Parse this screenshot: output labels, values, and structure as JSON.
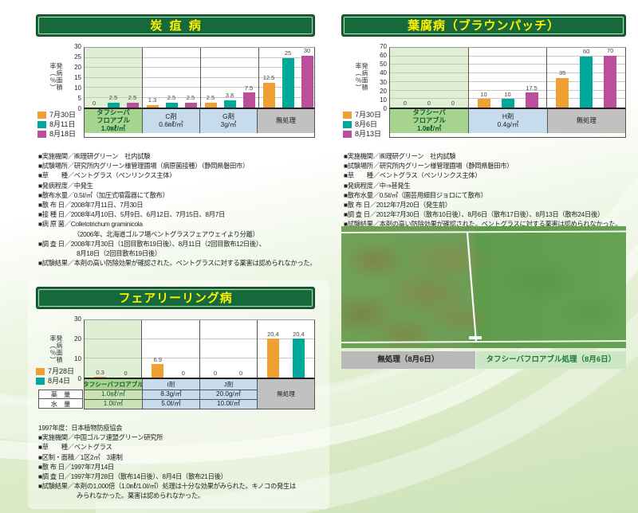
{
  "colors": {
    "series_orange": "#F0A033",
    "series_teal": "#00A79B",
    "series_magenta": "#BC4F9C",
    "header_green": "#15693B",
    "title_yellow": "#FFF100",
    "product_label_green": "#A6D48E",
    "reference_label_blue": "#C6DBEC",
    "untreated_gray": "#C1C1C1",
    "caption_right_green": "#CCE7C5"
  },
  "sections": {
    "anthracnose": {
      "title": "炭疽病",
      "notes": [
        "■実施機関／㈱理研グリーン　社内試験",
        "■試験場所／研究所内グリーン様管理圃場（病原菌接種）（静岡県磐田市）",
        "■草　　種／ベントグラス（ペンリンクス主体）",
        "■発病程度／中発生",
        "■散布水量／0.5ℓ/㎡（加圧式噴霧器にて散布）",
        "■散 布 日／2008年7月11日、7月30日",
        "■接 種 日／2008年4月10日、5月9日、6月12日、7月15日、8月7日",
        "■病 原 菌／Colletotrichum graminicola",
        "　　　　　　（2006年、北海道ゴルフ場ベントグラスフェアウェイより分離）",
        "■調 査 日／2008年7月30日（1回目散布19日後）、8月11日（2回目散布12日後）、",
        "　　　　　　8月18日（2回目散布19日後）",
        "■試験結果／本剤の高い防除効果が確認された。ベントグラスに対する薬害は認められなかった。"
      ]
    },
    "brownpatch": {
      "title": "葉腐病（ブラウンパッチ）",
      "notes": [
        "■実施機関／㈱理研グリーン　社内試験",
        "■試験場所／研究所内グリーン様管理圃場（静岡県磐田市）",
        "■草　　種／ベントグラス（ペンリンクス主体）",
        "■発病程度／中⇒甚発生",
        "■散布水量／0.5ℓ/㎡（園芸用細目ジョロにて散布）",
        "■散 布 日／2012年7月20日（発生前）",
        "■調 査 日／2012年7月30日（散布10日後）、8月6日（散布17日後）、8月13日（散布24日後）",
        "■試験結果／本剤の高い防除効果が確認された。ベントグラスに対する薬害は認められなかった。"
      ]
    },
    "fairyring": {
      "title": "フェアリーリング病",
      "preface": "1997年度：日本植物防疫協会",
      "notes": [
        "■実施機関／中国ゴルフ連盟グリーン研究所",
        "■草　　種／ベントグラス",
        "■区制・面積／1区2㎡　3連制",
        "■散 布 日／1997年7月14日",
        "■調 査 日／1997年7月28日（散布14日後）、8月4日（散布21日後）",
        "■試験結果／本剤の1,000倍（1.0㎖/1.0ℓ/㎡）処理は十分な効果がみられた。キノコの発生は",
        "　　　　　　みられなかった。薬害は認められなかった。"
      ]
    },
    "photo": {
      "caption_left": "無処理（8月6日）",
      "caption_right": "タフシーバフロアブル処理（8月6日）"
    }
  },
  "chart_data": [
    {
      "id": "anthracnose",
      "type": "bar",
      "title": "炭疽病",
      "ylabel": "発病面積率（％）",
      "ylim": [
        0,
        30
      ],
      "yticks": [
        0,
        5,
        10,
        15,
        20,
        25,
        30
      ],
      "grid": true,
      "legend_position": "below-axis",
      "series": [
        "7月30日",
        "8月11日",
        "8月18日"
      ],
      "series_colors": [
        "#F0A033",
        "#00A79B",
        "#BC4F9C"
      ],
      "groups": [
        {
          "label": [
            "タフシーバ",
            "フロアブル",
            "1.0㎖/㎡"
          ],
          "kind": "product",
          "values": [
            0,
            2.5,
            2.5
          ]
        },
        {
          "label": [
            "C剤",
            "0.6㎖/㎡"
          ],
          "kind": "reference",
          "values": [
            1.3,
            2.5,
            2.5
          ]
        },
        {
          "label": [
            "G剤",
            "3g/㎡"
          ],
          "kind": "reference",
          "values": [
            2.5,
            3.8,
            7.5
          ]
        },
        {
          "label": [
            "無処理"
          ],
          "kind": "untreated",
          "values": [
            12.5,
            25,
            30
          ]
        }
      ]
    },
    {
      "id": "brownpatch",
      "type": "bar",
      "title": "葉腐病（ブラウンパッチ）",
      "ylabel": "発病面積率（％）",
      "ylim": [
        0,
        70
      ],
      "yticks": [
        0,
        10,
        20,
        30,
        40,
        50,
        60,
        70
      ],
      "grid": true,
      "legend_position": "below-axis",
      "series": [
        "7月30日",
        "8月6日",
        "8月13日"
      ],
      "series_colors": [
        "#F0A033",
        "#00A79B",
        "#BC4F9C"
      ],
      "groups": [
        {
          "label": [
            "タフシーバ",
            "フロアブル",
            "1.0㎖/㎡"
          ],
          "kind": "product",
          "values": [
            0,
            0,
            0
          ]
        },
        {
          "label": [
            "H剤",
            "0.4g/㎡"
          ],
          "kind": "reference",
          "values": [
            10,
            10,
            17.5
          ]
        },
        {
          "label": [
            "無処理"
          ],
          "kind": "untreated",
          "values": [
            35,
            60,
            70
          ]
        }
      ]
    },
    {
      "id": "fairyring",
      "type": "bar",
      "title": "フェアリーリング病",
      "ylabel": "発病面積率（％）",
      "ylim": [
        0,
        30
      ],
      "yticks": [
        0,
        10,
        20,
        30
      ],
      "grid": true,
      "legend_position": "beside-plot-bottom",
      "series": [
        "7月28日",
        "8月4日"
      ],
      "series_colors": [
        "#F0A033",
        "#00A79B"
      ],
      "row_headers": [
        "薬　量",
        "水　量"
      ],
      "groups": [
        {
          "label": [
            "タフシーバフロアブル"
          ],
          "kind": "product",
          "dose": "1.0㎖/㎡",
          "water": "1.0ℓ/㎡",
          "values": [
            0.3,
            0
          ]
        },
        {
          "label": [
            "I剤"
          ],
          "kind": "reference",
          "dose": "8.3g/㎡",
          "water": "5.0ℓ/㎡",
          "values": [
            6.9,
            0
          ]
        },
        {
          "label": [
            "J剤"
          ],
          "kind": "reference",
          "dose": "20.0g/㎡",
          "water": "10.0ℓ/㎡",
          "values": [
            0,
            0
          ]
        },
        {
          "label": [
            "無処理"
          ],
          "kind": "untreated",
          "values": [
            20.4,
            20.4
          ]
        }
      ]
    }
  ]
}
